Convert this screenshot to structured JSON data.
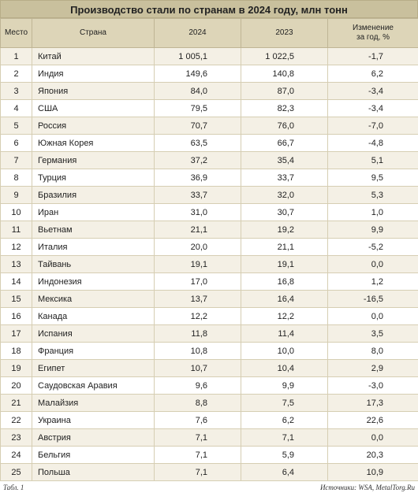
{
  "title": "Производство стали по странам в 2024 году, млн тонн",
  "table": {
    "header": [
      "Место",
      "Страна",
      "2024",
      "2023",
      "Изменение\nза год, %"
    ],
    "rows": [
      [
        "1",
        "Китай",
        "1 005,1",
        "1 022,5",
        "-1,7"
      ],
      [
        "2",
        "Индия",
        "149,6",
        "140,8",
        "6,2"
      ],
      [
        "3",
        "Япония",
        "84,0",
        "87,0",
        "-3,4"
      ],
      [
        "4",
        "США",
        "79,5",
        "82,3",
        "-3,4"
      ],
      [
        "5",
        "Россия",
        "70,7",
        "76,0",
        "-7,0"
      ],
      [
        "6",
        "Южная Корея",
        "63,5",
        "66,7",
        "-4,8"
      ],
      [
        "7",
        "Германия",
        "37,2",
        "35,4",
        "5,1"
      ],
      [
        "8",
        "Турция",
        "36,9",
        "33,7",
        "9,5"
      ],
      [
        "9",
        "Бразилия",
        "33,7",
        "32,0",
        "5,3"
      ],
      [
        "10",
        "Иран",
        "31,0",
        "30,7",
        "1,0"
      ],
      [
        "11",
        "Вьетнам",
        "21,1",
        "19,2",
        "9,9"
      ],
      [
        "12",
        "Италия",
        "20,0",
        "21,1",
        "-5,2"
      ],
      [
        "13",
        "Тайвань",
        "19,1",
        "19,1",
        "0,0"
      ],
      [
        "14",
        "Индонезия",
        "17,0",
        "16,8",
        "1,2"
      ],
      [
        "15",
        "Мексика",
        "13,7",
        "16,4",
        "-16,5"
      ],
      [
        "16",
        "Канада",
        "12,2",
        "12,2",
        "0,0"
      ],
      [
        "17",
        "Испания",
        "11,8",
        "11,4",
        "3,5"
      ],
      [
        "18",
        "Франция",
        "10,8",
        "10,0",
        "8,0"
      ],
      [
        "19",
        "Египет",
        "10,7",
        "10,4",
        "2,9"
      ],
      [
        "20",
        "Саудовская Аравия",
        "9,6",
        "9,9",
        "-3,0"
      ],
      [
        "21",
        "Малайзия",
        "8,8",
        "7,5",
        "17,3"
      ],
      [
        "22",
        "Украина",
        "7,6",
        "6,2",
        "22,6"
      ],
      [
        "23",
        "Австрия",
        "7,1",
        "7,1",
        "0,0"
      ],
      [
        "24",
        "Бельгия",
        "7,1",
        "5,9",
        "20,3"
      ],
      [
        "25",
        "Польша",
        "7,1",
        "6,4",
        "10,9"
      ]
    ]
  },
  "footer": {
    "label": "Табл. 1",
    "sources": "Источники: WSA, MetalTorg.Ru"
  }
}
